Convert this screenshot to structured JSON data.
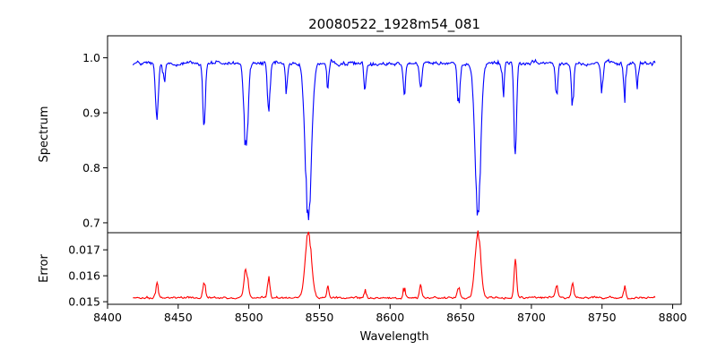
{
  "chart_data": {
    "type": "line",
    "title": "20080522_1928m54_081",
    "xlabel": "Wavelength",
    "x_ticks": [
      8400,
      8450,
      8500,
      8550,
      8600,
      8650,
      8700,
      8750,
      8800
    ],
    "x_range": [
      8418,
      8788
    ],
    "xlim": [
      8400,
      8806
    ],
    "panels": [
      {
        "id": "spectrum",
        "ylabel": "Spectrum",
        "ylim": [
          0.682,
          1.04
        ],
        "y_ticks": [
          0.7,
          0.8,
          0.9,
          1.0
        ],
        "y_tick_labels": [
          "0.7",
          "0.8",
          "0.9",
          "1.0"
        ],
        "series": [
          {
            "color": "#0000ff",
            "baseline": 0.99,
            "noise": 0.012,
            "features": [
              {
                "center": 8542.1,
                "depth": 0.28,
                "width": 2.2
              },
              {
                "center": 8662.1,
                "depth": 0.27,
                "width": 2.0
              },
              {
                "center": 8498.0,
                "depth": 0.16,
                "width": 1.4
              },
              {
                "center": 8688.6,
                "depth": 0.17,
                "width": 0.9
              },
              {
                "center": 8434.9,
                "depth": 0.11,
                "width": 1.0
              },
              {
                "center": 8468.3,
                "depth": 0.11,
                "width": 0.9
              },
              {
                "center": 8514.1,
                "depth": 0.1,
                "width": 0.9
              },
              {
                "center": 8648.5,
                "depth": 0.07,
                "width": 1.0
              },
              {
                "center": 8729.1,
                "depth": 0.07,
                "width": 0.8
              },
              {
                "center": 8717.8,
                "depth": 0.06,
                "width": 0.8
              },
              {
                "center": 8766.0,
                "depth": 0.06,
                "width": 0.8
              },
              {
                "center": 8680.0,
                "depth": 0.05,
                "width": 0.8
              },
              {
                "center": 8610.0,
                "depth": 0.05,
                "width": 0.8
              },
              {
                "center": 8621.6,
                "depth": 0.05,
                "width": 0.8
              },
              {
                "center": 8582.3,
                "depth": 0.05,
                "width": 0.8
              },
              {
                "center": 8556.0,
                "depth": 0.04,
                "width": 0.8
              },
              {
                "center": 8526.7,
                "depth": 0.05,
                "width": 0.8
              },
              {
                "center": 8440.0,
                "depth": 0.04,
                "width": 0.8
              },
              {
                "center": 8750.0,
                "depth": 0.05,
                "width": 0.8
              },
              {
                "center": 8775.0,
                "depth": 0.04,
                "width": 0.8
              }
            ]
          }
        ]
      },
      {
        "id": "error",
        "ylabel": "Error",
        "ylim": [
          0.0149,
          0.01766
        ],
        "y_ticks": [
          0.015,
          0.016,
          0.017
        ],
        "y_tick_labels": [
          "0.015",
          "0.016",
          "0.017"
        ],
        "series": [
          {
            "color": "#ff0000",
            "baseline": 0.01515,
            "noise": 0.00012,
            "features": [
              {
                "center": 8542.1,
                "depth": 0.0025,
                "width": 2.2
              },
              {
                "center": 8662.1,
                "depth": 0.0025,
                "width": 2.0
              },
              {
                "center": 8498.0,
                "depth": 0.0011,
                "width": 1.4
              },
              {
                "center": 8688.6,
                "depth": 0.0014,
                "width": 0.9
              },
              {
                "center": 8434.9,
                "depth": 0.0005,
                "width": 1.0
              },
              {
                "center": 8468.3,
                "depth": 0.0007,
                "width": 0.9
              },
              {
                "center": 8514.1,
                "depth": 0.0008,
                "width": 0.9
              },
              {
                "center": 8648.5,
                "depth": 0.0004,
                "width": 1.0
              },
              {
                "center": 8729.1,
                "depth": 0.0006,
                "width": 0.8
              },
              {
                "center": 8717.8,
                "depth": 0.0005,
                "width": 0.8
              },
              {
                "center": 8766.0,
                "depth": 0.0004,
                "width": 0.8
              },
              {
                "center": 8610.0,
                "depth": 0.0004,
                "width": 0.8
              },
              {
                "center": 8621.6,
                "depth": 0.0004,
                "width": 0.8
              },
              {
                "center": 8582.3,
                "depth": 0.0003,
                "width": 0.8
              },
              {
                "center": 8556.0,
                "depth": 0.0004,
                "width": 0.8
              }
            ]
          }
        ]
      }
    ]
  }
}
